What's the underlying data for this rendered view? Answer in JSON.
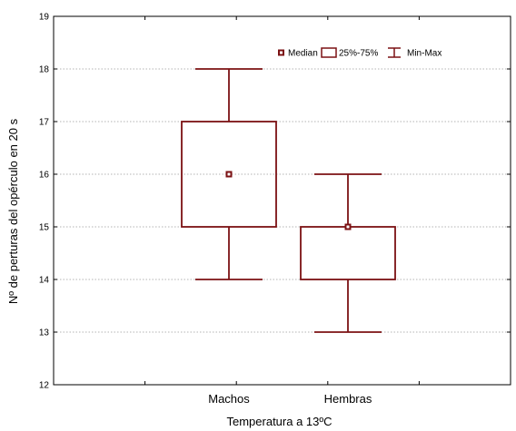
{
  "chart_data": {
    "type": "boxplot",
    "title": "",
    "xlabel": "Temperatura a 13ºC",
    "ylabel": "Nº de perturas del opérculo en 20 s",
    "ylim": [
      12,
      19
    ],
    "yticks": [
      "12",
      "13",
      "14",
      "15",
      "16",
      "17",
      "18",
      "19"
    ],
    "grid": "horizontal dotted",
    "legend_position": "top-right",
    "legend": [
      "Median",
      "25%-75%",
      "Min-Max"
    ],
    "categories": [
      "Machos",
      "Hembras"
    ],
    "boxes": [
      {
        "category": "Machos",
        "min": 14,
        "q1": 15,
        "median": 16,
        "q3": 17,
        "max": 18
      },
      {
        "category": "Hembras",
        "min": 13,
        "q1": 14,
        "median": 15,
        "q3": 15,
        "max": 16
      }
    ],
    "colors": {
      "box": "#7b1113",
      "grid": "#9a9a9a",
      "axis": "#000000"
    }
  }
}
